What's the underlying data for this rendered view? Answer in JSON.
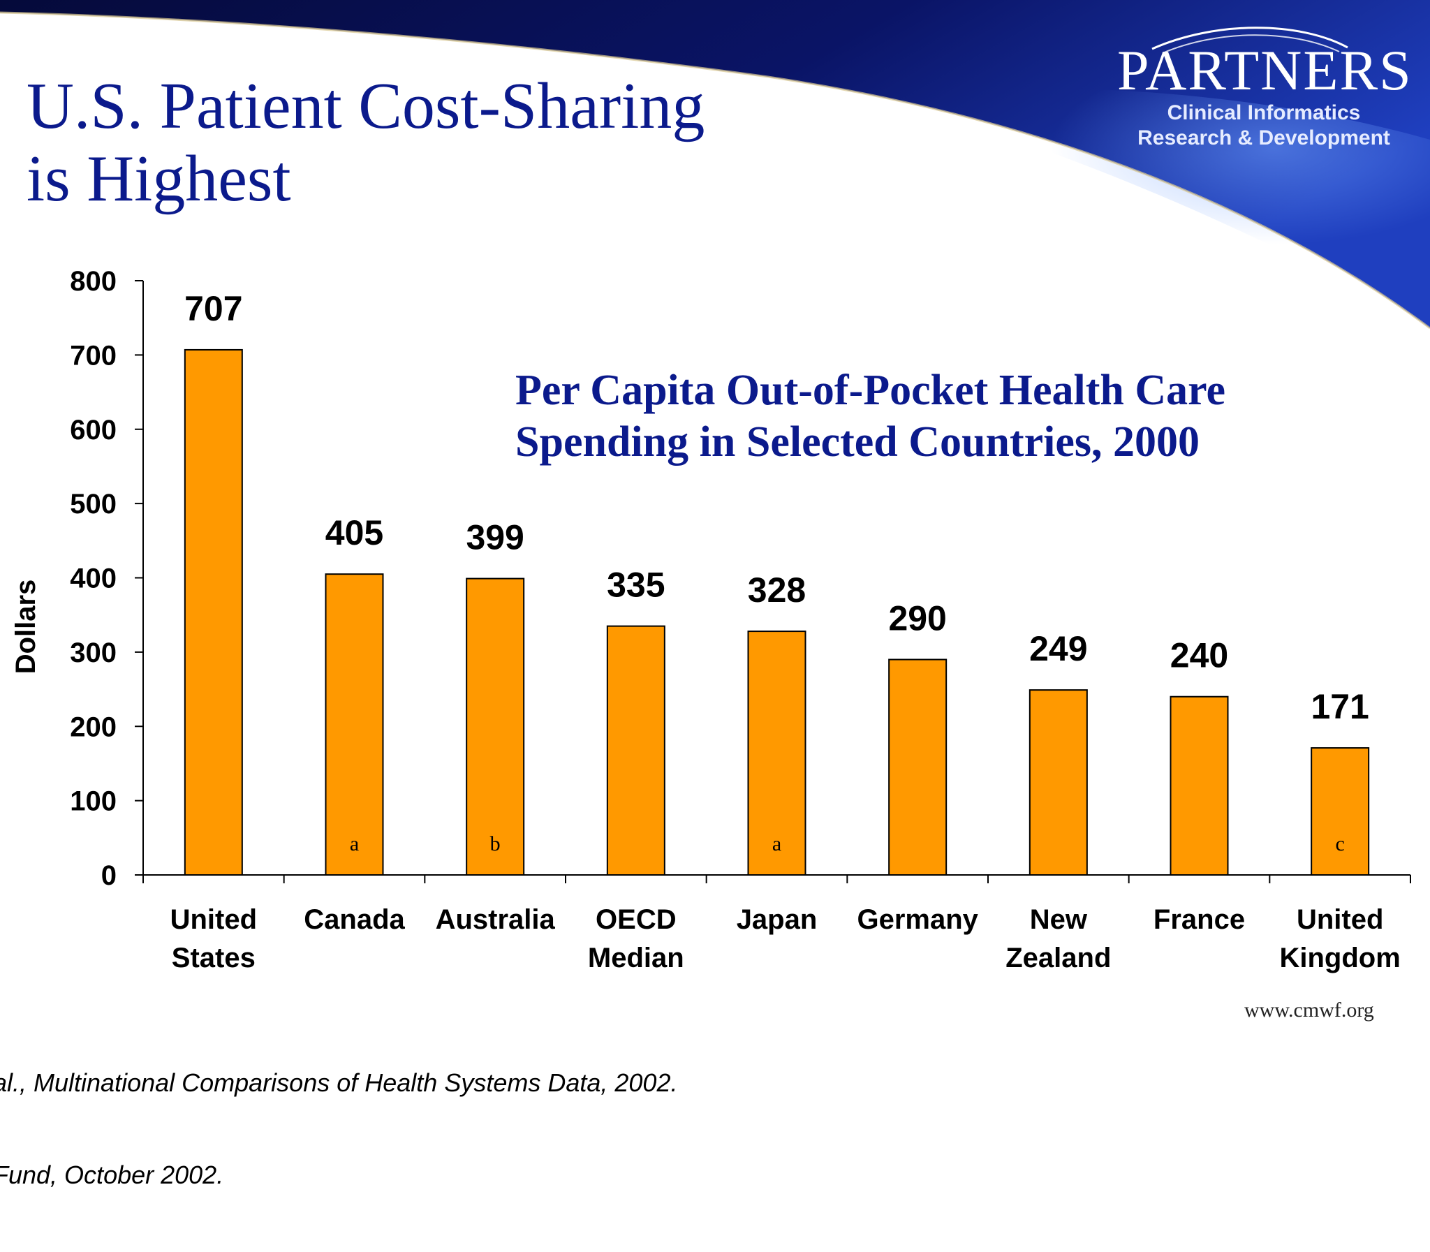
{
  "slide": {
    "title_line1": "U.S. Patient Cost-Sharing",
    "title_line2": "is Highest",
    "logo": {
      "wordmark": "PARTNERS",
      "sub_line1": "Clinical Informatics",
      "sub_line2": "Research & Development"
    },
    "source_line1": "al., Multinational Comparisons of Health Systems Data, 2002.",
    "source_line2": "Fund, October 2002.",
    "website": "www.cmwf.org"
  },
  "colors": {
    "bar": "#ff9900",
    "title": "#0b1a8c",
    "banner": "#0a1466"
  },
  "chart_data": {
    "type": "bar",
    "title_line1": "Per Capita Out-of-Pocket Health Care",
    "title_line2": "Spending in Selected Countries, 2000",
    "ylabel": "Dollars",
    "xlabel": "",
    "ylim": [
      0,
      800
    ],
    "yticks": [
      0,
      100,
      200,
      300,
      400,
      500,
      600,
      700,
      800
    ],
    "categories": [
      [
        "United",
        "States"
      ],
      [
        "Canada"
      ],
      [
        "Australia"
      ],
      [
        "OECD",
        "Median"
      ],
      [
        "Japan"
      ],
      [
        "Germany"
      ],
      [
        "New",
        "Zealand"
      ],
      [
        "France"
      ],
      [
        "United",
        "Kingdom"
      ]
    ],
    "values": [
      707,
      405,
      399,
      335,
      328,
      290,
      249,
      240,
      171
    ],
    "notes": [
      "",
      "a",
      "b",
      "",
      "a",
      "",
      "",
      "",
      "c"
    ],
    "grid": false,
    "legend": "none"
  }
}
